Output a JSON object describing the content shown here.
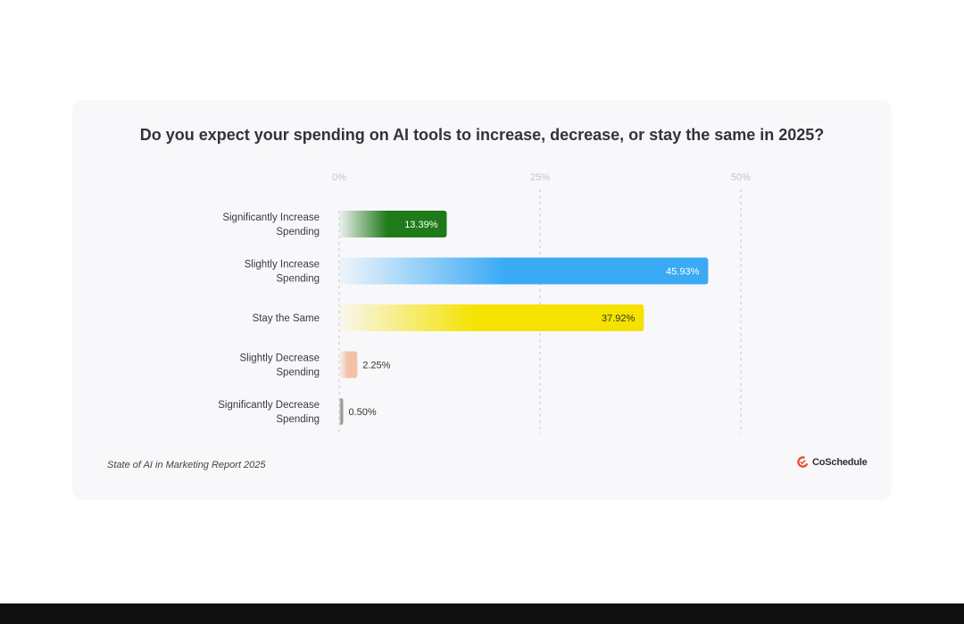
{
  "chart_data": {
    "type": "bar",
    "orientation": "horizontal",
    "title": "Do you expect your spending on AI tools to increase, decrease, or stay the same in 2025?",
    "categories": [
      [
        "Significantly Increase",
        "Spending"
      ],
      [
        "Slightly Increase",
        "Spending"
      ],
      [
        "Stay the Same"
      ],
      [
        "Slightly Decrease",
        "Spending"
      ],
      [
        "Significantly Decrease",
        "Spending"
      ]
    ],
    "values": [
      13.39,
      45.93,
      37.92,
      2.25,
      0.5
    ],
    "value_labels": [
      "13.39%",
      "45.93%",
      "37.92%",
      "2.25%",
      "0.50%"
    ],
    "colors": [
      "#1f7a1a",
      "#3aaaf5",
      "#f5e200",
      "#f2c2a7",
      "#9a9a9a"
    ],
    "xlim": [
      0,
      50
    ],
    "xticks": [
      "0%",
      "25%",
      "50%"
    ],
    "grid": true
  },
  "source": "State of AI in Marketing Report 2025",
  "brand": "CoSchedule",
  "brand_color": "#e8532b"
}
